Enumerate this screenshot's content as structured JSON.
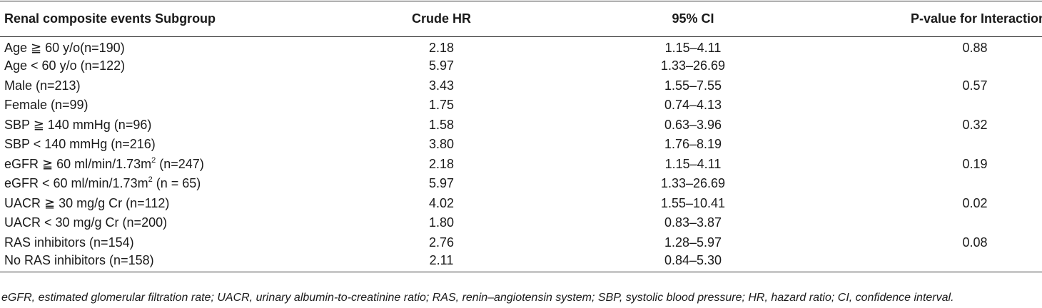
{
  "table": {
    "headers": [
      "Renal composite events Subgroup",
      "Crude HR",
      "95% CI",
      "P-value for Interaction"
    ],
    "rows": [
      {
        "subgroup": "Age ≧ 60 y/o(n=190)",
        "hr": "2.18",
        "ci": "1.15–4.11",
        "p": "0.88"
      },
      {
        "subgroup": "Age < 60 y/o (n=122)",
        "hr": "5.97",
        "ci": "1.33–26.69",
        "p": ""
      },
      {
        "subgroup": "Male (n=213)",
        "hr": "3.43",
        "ci": "1.55–7.55",
        "p": "0.57"
      },
      {
        "subgroup": "Female (n=99)",
        "hr": "1.75",
        "ci": "0.74–4.13",
        "p": ""
      },
      {
        "subgroup": "SBP ≧ 140 mmHg (n=96)",
        "hr": "1.58",
        "ci": "0.63–3.96",
        "p": "0.32"
      },
      {
        "subgroup": "SBP < 140 mmHg (n=216)",
        "hr": "3.80",
        "ci": "1.76–8.19",
        "p": ""
      },
      {
        "subgroup_pre": "eGFR ≧ 60 ml/min/1.73m",
        "subgroup_sup": "2",
        "subgroup_post": " (n=247)",
        "hr": "2.18",
        "ci": "1.15–4.11",
        "p": "0.19"
      },
      {
        "subgroup_pre": "eGFR < 60 ml/min/1.73m",
        "subgroup_sup": "2",
        "subgroup_post": " (n = 65)",
        "hr": "5.97",
        "ci": "1.33–26.69",
        "p": ""
      },
      {
        "subgroup": "UACR ≧ 30 mg/g Cr (n=112)",
        "hr": "4.02",
        "ci": "1.55–10.41",
        "p": "0.02"
      },
      {
        "subgroup": "UACR < 30 mg/g Cr (n=200)",
        "hr": "1.80",
        "ci": "0.83–3.87",
        "p": ""
      },
      {
        "subgroup": "RAS inhibitors (n=154)",
        "hr": "2.76",
        "ci": "1.28–5.97",
        "p": "0.08"
      },
      {
        "subgroup": "No RAS inhibitors (n=158)",
        "hr": "2.11",
        "ci": "0.84–5.30",
        "p": ""
      }
    ]
  },
  "footnote": "eGFR, estimated glomerular filtration rate; UACR, urinary albumin-to-creatinine ratio; RAS, renin–angiotensin system; SBP, systolic blood pressure; HR, hazard ratio; CI, confidence interval."
}
